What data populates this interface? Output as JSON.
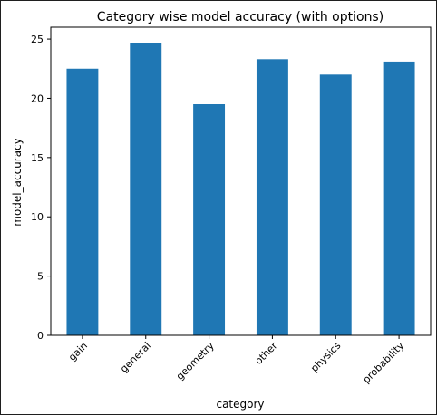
{
  "chart_data": {
    "type": "bar",
    "title": "Category wise model accuracy (with options)",
    "xlabel": "category",
    "ylabel": "model_accuracy",
    "categories": [
      "gain",
      "general",
      "geometry",
      "other",
      "physics",
      "probability"
    ],
    "values": [
      22.5,
      24.7,
      19.5,
      23.3,
      22.0,
      23.1
    ],
    "ylim": [
      0,
      26
    ],
    "yticks": [
      0,
      5,
      10,
      15,
      20,
      25
    ],
    "grid": false,
    "bar_color": "#1f77b4"
  }
}
